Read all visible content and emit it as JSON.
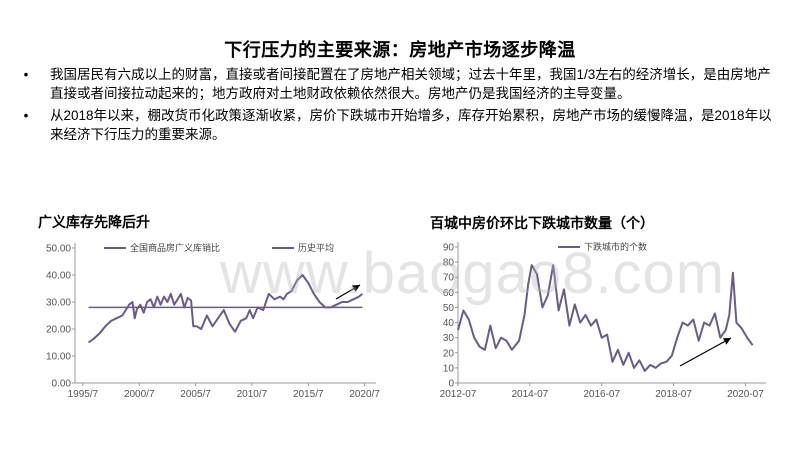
{
  "slide": {
    "title": "下行压力的主要来源：房地产市场逐步降温",
    "bullets": [
      "我国居民有六成以上的财富，直接或者间接配置在了房地产相关领域；过去十年里，我国1/3左右的经济增长，是由房地产直接或者间接拉动起来的；地方政府对土地财政依赖依然很大。房地产仍是我国经济的主导变量。",
      "从2018年以来，棚改货币化政策逐渐收紧，房价下跌城市开始增多，库存开始累积，房地产市场的缓慢降温，是2018年以来经济下行压力的重要来源。"
    ],
    "bullet_symbol": "•"
  },
  "watermark": "www.baogao8.com",
  "chart_data": [
    {
      "type": "line",
      "title": "广义库存先降后升",
      "x_ticks": [
        "1995/7",
        "2000/7",
        "2005/7",
        "2010/7",
        "2015/7",
        "2020/7"
      ],
      "ylim": [
        0,
        50
      ],
      "y_ticks": [
        "0.00",
        "10.00",
        "20.00",
        "30.00",
        "40.00",
        "50.00"
      ],
      "legend_position": "top",
      "series": [
        {
          "name": "全国商品房广义库销比",
          "color": "#6b5b8a",
          "x": [
            1996.0,
            1996.5,
            1997.0,
            1997.5,
            1998.0,
            1998.5,
            1999.0,
            1999.3,
            1999.6,
            1999.9,
            2000.1,
            2000.3,
            2000.6,
            2000.9,
            2001.2,
            2001.5,
            2001.8,
            2002.1,
            2002.4,
            2002.7,
            2003.0,
            2003.3,
            2003.6,
            2003.9,
            2004.2,
            2004.5,
            2004.8,
            2005.1,
            2005.3,
            2005.6,
            2006.0,
            2006.5,
            2007.0,
            2007.5,
            2008.0,
            2008.5,
            2009.0,
            2009.5,
            2010.0,
            2010.3,
            2010.6,
            2011.0,
            2011.5,
            2012.0,
            2012.5,
            2013.0,
            2013.3,
            2013.6,
            2014.0,
            2014.5,
            2015.0,
            2015.5,
            2016.0,
            2016.5,
            2017.0,
            2017.5,
            2018.0,
            2018.5,
            2019.0,
            2019.5,
            2020.0,
            2020.3
          ],
          "y": [
            15.0,
            16.5,
            18.5,
            21.0,
            23.0,
            24.0,
            25.0,
            27.0,
            29.0,
            30.0,
            24.0,
            27.5,
            29.0,
            26.0,
            30.0,
            31.0,
            28.0,
            32.0,
            29.0,
            32.0,
            30.0,
            33.0,
            29.0,
            31.0,
            33.0,
            28.0,
            31.5,
            30.5,
            21.0,
            21.0,
            20.0,
            25.0,
            21.0,
            24.0,
            27.0,
            22.0,
            19.0,
            23.0,
            24.0,
            27.0,
            24.0,
            28.0,
            27.0,
            33.0,
            31.0,
            32.0,
            31.0,
            33.0,
            34.0,
            38.0,
            40.0,
            37.0,
            33.0,
            30.0,
            28.0,
            28.0,
            29.0,
            30.0,
            30.0,
            31.0,
            32.0,
            33.0
          ]
        },
        {
          "name": "历史平均",
          "color": "#6b5b8a",
          "x": [
            1996.0,
            2020.3
          ],
          "y": [
            28.0,
            28.0
          ]
        }
      ],
      "annotation": "arrow-up"
    },
    {
      "type": "line",
      "title": "百城中房价环比下跌城市数量（个）",
      "x_ticks": [
        "2012-07",
        "2014-07",
        "2016-07",
        "2018-07",
        "2020-07"
      ],
      "ylim": [
        0,
        90
      ],
      "y_ticks": [
        "0",
        "10",
        "20",
        "30",
        "40",
        "50",
        "60",
        "70",
        "80",
        "90"
      ],
      "legend_position": "top",
      "series": [
        {
          "name": "下跌城市的个数",
          "color": "#6b5b8a",
          "x": [
            2012.5,
            2012.65,
            2012.8,
            2012.95,
            2013.1,
            2013.25,
            2013.4,
            2013.55,
            2013.7,
            2013.85,
            2014.0,
            2014.2,
            2014.35,
            2014.45,
            2014.55,
            2014.7,
            2014.85,
            2015.0,
            2015.15,
            2015.3,
            2015.45,
            2015.6,
            2015.75,
            2015.9,
            2016.05,
            2016.2,
            2016.35,
            2016.5,
            2016.65,
            2016.8,
            2016.95,
            2017.1,
            2017.25,
            2017.4,
            2017.55,
            2017.7,
            2017.85,
            2018.0,
            2018.15,
            2018.3,
            2018.45,
            2018.6,
            2018.75,
            2018.9,
            2019.05,
            2019.2,
            2019.35,
            2019.5,
            2019.65,
            2019.8,
            2019.95,
            2020.05,
            2020.15,
            2020.25,
            2020.4,
            2020.55,
            2020.7
          ],
          "y": [
            35,
            48,
            42,
            30,
            24,
            22,
            38,
            23,
            30,
            28,
            22,
            28,
            45,
            65,
            78,
            72,
            50,
            58,
            78,
            48,
            62,
            38,
            52,
            40,
            45,
            38,
            42,
            30,
            32,
            14,
            22,
            12,
            20,
            10,
            15,
            8,
            12,
            10,
            13,
            14,
            18,
            30,
            40,
            38,
            42,
            28,
            40,
            38,
            46,
            30,
            35,
            45,
            73,
            40,
            36,
            30,
            25
          ]
        }
      ],
      "annotation": "arrow-up"
    }
  ]
}
